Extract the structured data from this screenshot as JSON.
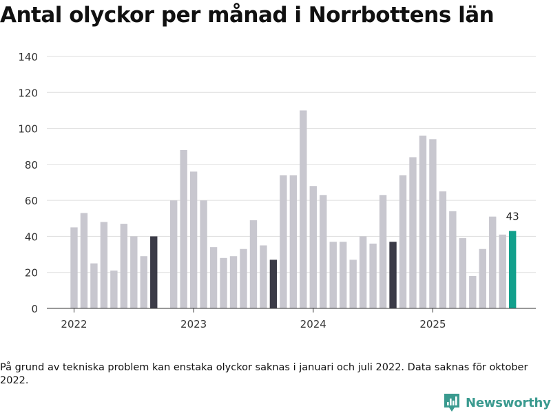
{
  "title": "Antal olyckor per månad i Norrbottens län",
  "note": "På grund av tekniska problem kan enstaka olyckor saknas i januari och juli 2022. Data saknas för oktober 2022.",
  "brand": "Newsworthy",
  "colors": {
    "bar_default": "#c8c7cf",
    "bar_highlight": "#3b3b47",
    "bar_latest": "#12a08c",
    "grid": "#dddddd",
    "axis": "#333333",
    "logo": "#3a9a8f"
  },
  "chart_data": {
    "type": "bar",
    "title": "Antal olyckor per månad i Norrbottens län",
    "xlabel": "",
    "ylabel": "",
    "ylim": [
      0,
      140
    ],
    "yticks": [
      0,
      20,
      40,
      60,
      80,
      100,
      120,
      140
    ],
    "x_tick_labels": [
      {
        "label": "2022",
        "at": "2022-01"
      },
      {
        "label": "2023",
        "at": "2023-01"
      },
      {
        "label": "2024",
        "at": "2024-01"
      },
      {
        "label": "2025",
        "at": "2025-01"
      }
    ],
    "categories": [
      "2022-01",
      "2022-02",
      "2022-03",
      "2022-04",
      "2022-05",
      "2022-06",
      "2022-07",
      "2022-08",
      "2022-09",
      "2022-10",
      "2022-11",
      "2022-12",
      "2023-01",
      "2023-02",
      "2023-03",
      "2023-04",
      "2023-05",
      "2023-06",
      "2023-07",
      "2023-08",
      "2023-09",
      "2023-10",
      "2023-11",
      "2023-12",
      "2024-01",
      "2024-02",
      "2024-03",
      "2024-04",
      "2024-05",
      "2024-06",
      "2024-07",
      "2024-08",
      "2024-09",
      "2024-10",
      "2024-11",
      "2024-12",
      "2025-01",
      "2025-02",
      "2025-03",
      "2025-04",
      "2025-05",
      "2025-06",
      "2025-07",
      "2025-08",
      "2025-09"
    ],
    "values": [
      45,
      53,
      25,
      48,
      21,
      47,
      40,
      29,
      40,
      null,
      60,
      88,
      76,
      60,
      34,
      28,
      29,
      33,
      49,
      35,
      27,
      74,
      74,
      110,
      68,
      63,
      37,
      37,
      27,
      40,
      36,
      63,
      37,
      74,
      84,
      96,
      94,
      65,
      54,
      39,
      18,
      33,
      51,
      41,
      43
    ],
    "highlight_indices": [
      8,
      20,
      32
    ],
    "latest_index": 44,
    "data_labels": [
      {
        "index": 44,
        "text": "43"
      }
    ]
  }
}
